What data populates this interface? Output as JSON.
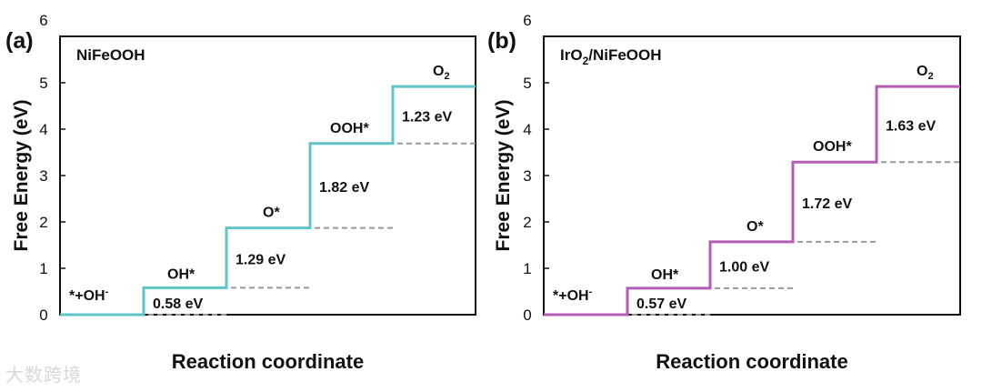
{
  "watermark": "大数跨境",
  "chart_data": [
    {
      "type": "line",
      "panel_label": "(a)",
      "title": "NiFeOOH",
      "title_sub": "",
      "title_rest": "",
      "ylabel": "Free Energy (eV)",
      "xlabel": "Reaction coordinate",
      "ylim": [
        0,
        6
      ],
      "yticks": [
        "0",
        "1",
        "2",
        "3",
        "4",
        "5",
        "6"
      ],
      "color": "#5fc4c6",
      "states": [
        "*+OH-",
        "OH*",
        "O*",
        "OOH*",
        "O2"
      ],
      "energies": [
        0,
        0.58,
        1.87,
        3.69,
        4.92
      ],
      "step_labels": [
        "0.58 eV",
        "1.29 eV",
        "1.82 eV",
        "1.23 eV"
      ]
    },
    {
      "type": "line",
      "panel_label": "(b)",
      "title": "IrO",
      "title_sub": "2",
      "title_rest": "/NiFeOOH",
      "ylabel": "Free Energy (eV)",
      "xlabel": "Reaction coordinate",
      "ylim": [
        0,
        6
      ],
      "yticks": [
        "0",
        "1",
        "2",
        "3",
        "4",
        "5",
        "6"
      ],
      "color": "#b35db5",
      "states": [
        "*+OH-",
        "OH*",
        "O*",
        "OOH*",
        "O2"
      ],
      "energies": [
        0,
        0.57,
        1.57,
        3.29,
        4.92
      ],
      "step_labels": [
        "0.57 eV",
        "1.00 eV",
        "1.72 eV",
        "1.63 eV"
      ]
    }
  ]
}
